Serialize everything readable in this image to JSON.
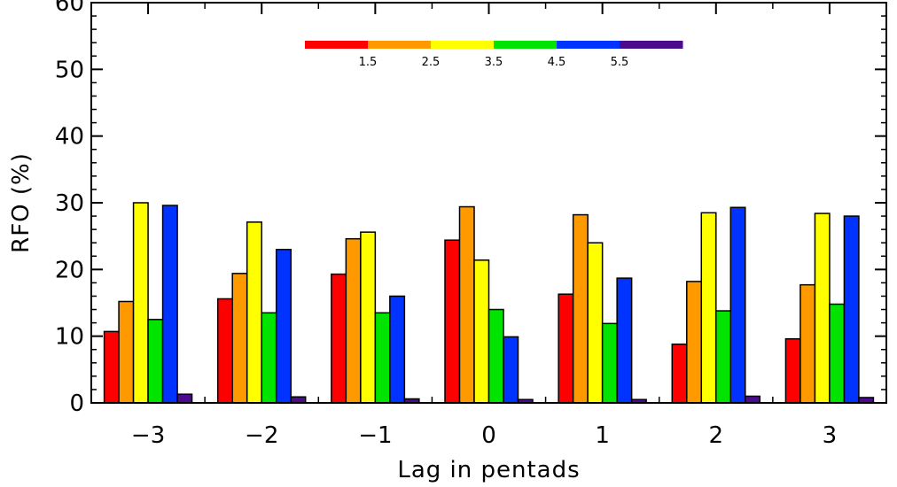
{
  "chart_data": {
    "type": "bar",
    "title": "",
    "xlabel": "Lag in pentads",
    "ylabel": "RFO (%)",
    "ylim": [
      0,
      60
    ],
    "yticks": [
      "0",
      "10",
      "20",
      "30",
      "40",
      "50",
      "60"
    ],
    "categories": [
      "−3",
      "−2",
      "−1",
      "0",
      "1",
      "2",
      "3"
    ],
    "series": [
      {
        "color": "#ff0000",
        "values": [
          10.7,
          15.6,
          19.3,
          24.4,
          16.3,
          8.8,
          9.6
        ]
      },
      {
        "color": "#ff9900",
        "values": [
          15.2,
          19.4,
          24.6,
          29.4,
          28.2,
          18.2,
          17.7
        ]
      },
      {
        "color": "#ffff00",
        "values": [
          30.0,
          27.1,
          25.6,
          21.4,
          24.0,
          28.5,
          28.4
        ]
      },
      {
        "color": "#00e400",
        "values": [
          12.5,
          13.5,
          13.5,
          14.0,
          11.9,
          13.8,
          14.8
        ]
      },
      {
        "color": "#0033ff",
        "values": [
          29.6,
          23.0,
          16.0,
          9.9,
          18.7,
          29.3,
          28.0
        ]
      },
      {
        "color": "#4b0b8c",
        "values": [
          1.3,
          0.9,
          0.6,
          0.5,
          0.5,
          1.0,
          0.8
        ]
      }
    ],
    "grid": false,
    "legend": {
      "placement": "top-center",
      "type": "color-bar",
      "colors": [
        "#ff0000",
        "#ff9900",
        "#ffff00",
        "#00e400",
        "#0033ff",
        "#4b0b8c"
      ],
      "labels": [
        "1.5",
        "2.5",
        "3.5",
        "4.5",
        "5.5"
      ]
    }
  }
}
